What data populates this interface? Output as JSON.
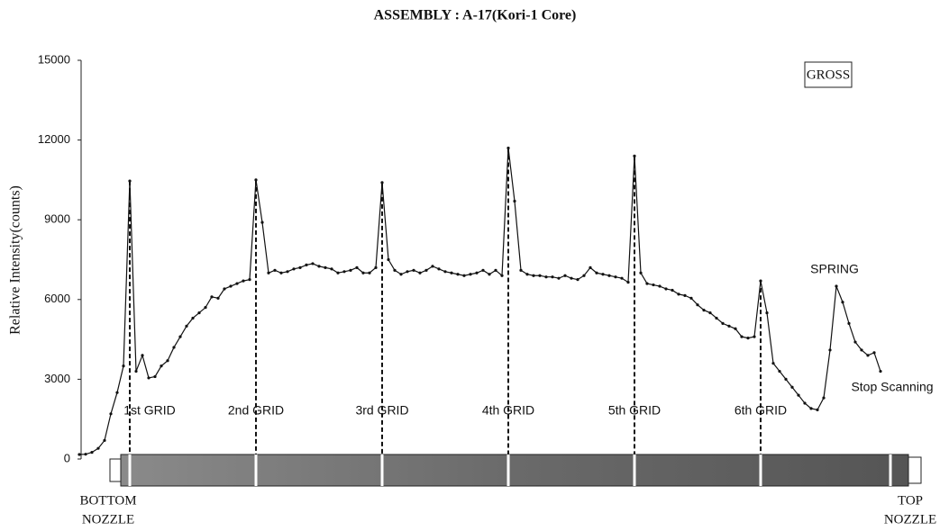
{
  "chart_data": {
    "type": "line",
    "title": "ASSEMBLY : A-17(Kori-1 Core)",
    "y_label": "Relative Intensity(counts)",
    "legend_box": "GROSS",
    "series": [
      {
        "name": "GROSS",
        "color": "#111111",
        "values": [
          170,
          180,
          250,
          400,
          700,
          1700,
          2500,
          3500,
          10460,
          3300,
          3900,
          3050,
          3100,
          3500,
          3700,
          4200,
          4600,
          5000,
          5300,
          5500,
          5700,
          6100,
          6050,
          6400,
          6500,
          6600,
          6700,
          6750,
          10500,
          8900,
          7000,
          7100,
          7000,
          7050,
          7150,
          7200,
          7300,
          7350,
          7250,
          7200,
          7150,
          7000,
          7050,
          7100,
          7200,
          7000,
          7000,
          7200,
          10400,
          7500,
          7100,
          6950,
          7050,
          7100,
          7000,
          7100,
          7250,
          7150,
          7050,
          7000,
          6950,
          6900,
          6950,
          7000,
          7100,
          6950,
          7100,
          6900,
          11700,
          9700,
          7100,
          6950,
          6900,
          6900,
          6850,
          6850,
          6800,
          6900,
          6800,
          6750,
          6900,
          7200,
          7000,
          6950,
          6900,
          6850,
          6800,
          6650,
          11400,
          7000,
          6600,
          6550,
          6500,
          6400,
          6350,
          6200,
          6150,
          6050,
          5800,
          5600,
          5500,
          5300,
          5100,
          5000,
          4900,
          4600,
          4550,
          4600,
          6700,
          5500,
          3600,
          3300,
          3000,
          2700,
          2400,
          2100,
          1900,
          1850,
          2300,
          4100,
          6500,
          5900,
          5100,
          4400,
          4100,
          3900,
          4000,
          3300
        ]
      }
    ],
    "ylim": [
      0,
      15000
    ],
    "yticks": [
      0,
      3000,
      6000,
      9000,
      12000,
      15000
    ],
    "annotations": {
      "grids": [
        "1st GRID",
        "2nd GRID",
        "3rd GRID",
        "4th GRID",
        "5th GRID",
        "6th GRID"
      ],
      "spring": "SPRING",
      "stop": "Stop Scanning",
      "bottom_nozzle": [
        "BOTTOM",
        "NOZZLE"
      ],
      "top_nozzle": [
        "TOP",
        "NOZZLE"
      ]
    }
  }
}
